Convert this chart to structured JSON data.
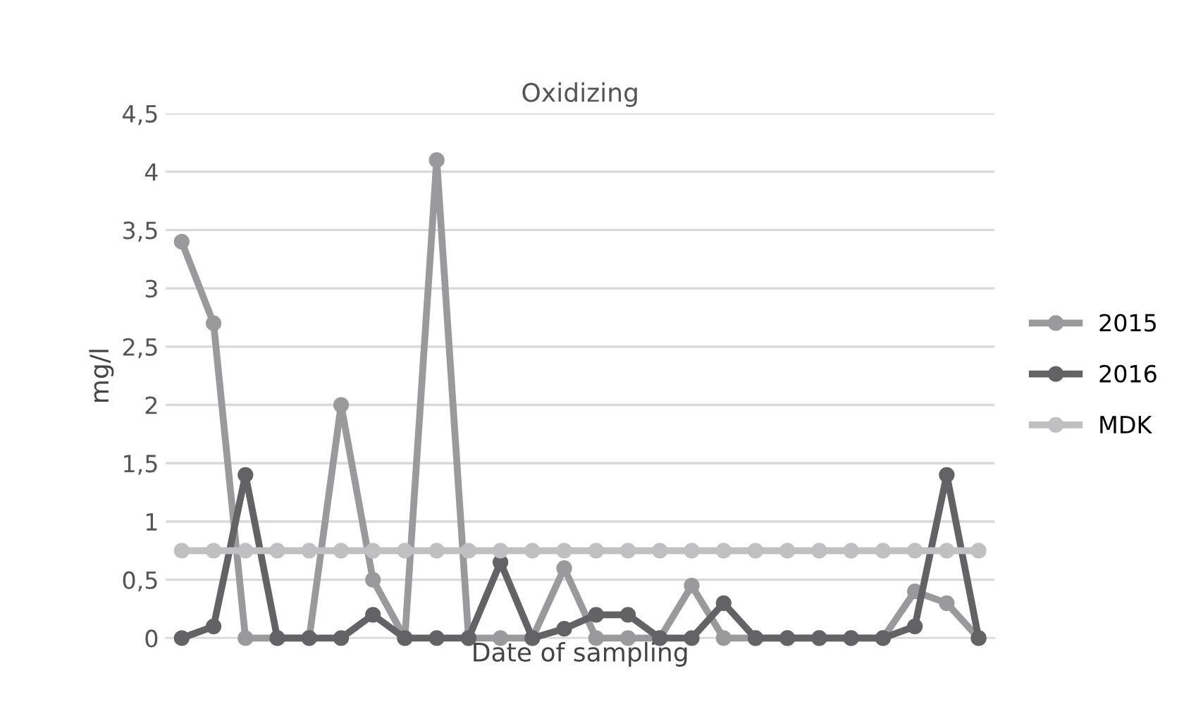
{
  "chart_data": {
    "type": "line",
    "title": "Oxidizing",
    "xlabel": "Date of sampling",
    "ylabel": "mg/l",
    "categories": [
      null,
      null,
      null,
      null,
      null,
      null,
      null,
      null,
      null,
      null,
      null,
      null,
      null,
      null,
      null,
      null,
      null,
      null,
      null,
      null,
      null,
      null,
      null,
      null,
      null,
      null
    ],
    "series": [
      {
        "name": "2015",
        "color": "#9a9a9c",
        "values": [
          3.4,
          2.7,
          0,
          0,
          0,
          2.0,
          0.5,
          0,
          4.1,
          0,
          0,
          0,
          0.6,
          0,
          0,
          0,
          0.45,
          0,
          0,
          0,
          0,
          0,
          0,
          0.4,
          0.3,
          0
        ]
      },
      {
        "name": "2016",
        "color": "#636366",
        "values": [
          0,
          0.1,
          1.4,
          0,
          0,
          0,
          0.2,
          0,
          0,
          0,
          0.65,
          0,
          0.08,
          0.2,
          0.2,
          0,
          0,
          0.3,
          0,
          0,
          0,
          0,
          0,
          0.1,
          1.4,
          0
        ]
      },
      {
        "name": "MDK",
        "color": "#c0c0c2",
        "values": [
          0.75,
          0.75,
          0.75,
          0.75,
          0.75,
          0.75,
          0.75,
          0.75,
          0.75,
          0.75,
          0.75,
          0.75,
          0.75,
          0.75,
          0.75,
          0.75,
          0.75,
          0.75,
          0.75,
          0.75,
          0.75,
          0.75,
          0.75,
          0.75,
          0.75,
          0.75
        ]
      }
    ],
    "ylim": [
      0,
      4.5
    ],
    "yticks": [
      0,
      {
        "value": 0.5,
        "label": "0,5"
      },
      1,
      {
        "value": 1.5,
        "label": "1,5"
      },
      2,
      {
        "value": 2.5,
        "label": "2,5"
      },
      3,
      {
        "value": 3.5,
        "label": "3,5"
      },
      4,
      {
        "value": 4.5,
        "label": "4,5"
      }
    ],
    "grid": "y",
    "legend": "right",
    "marker": "circle",
    "line_style": "solid",
    "tick_labels": "y"
  }
}
